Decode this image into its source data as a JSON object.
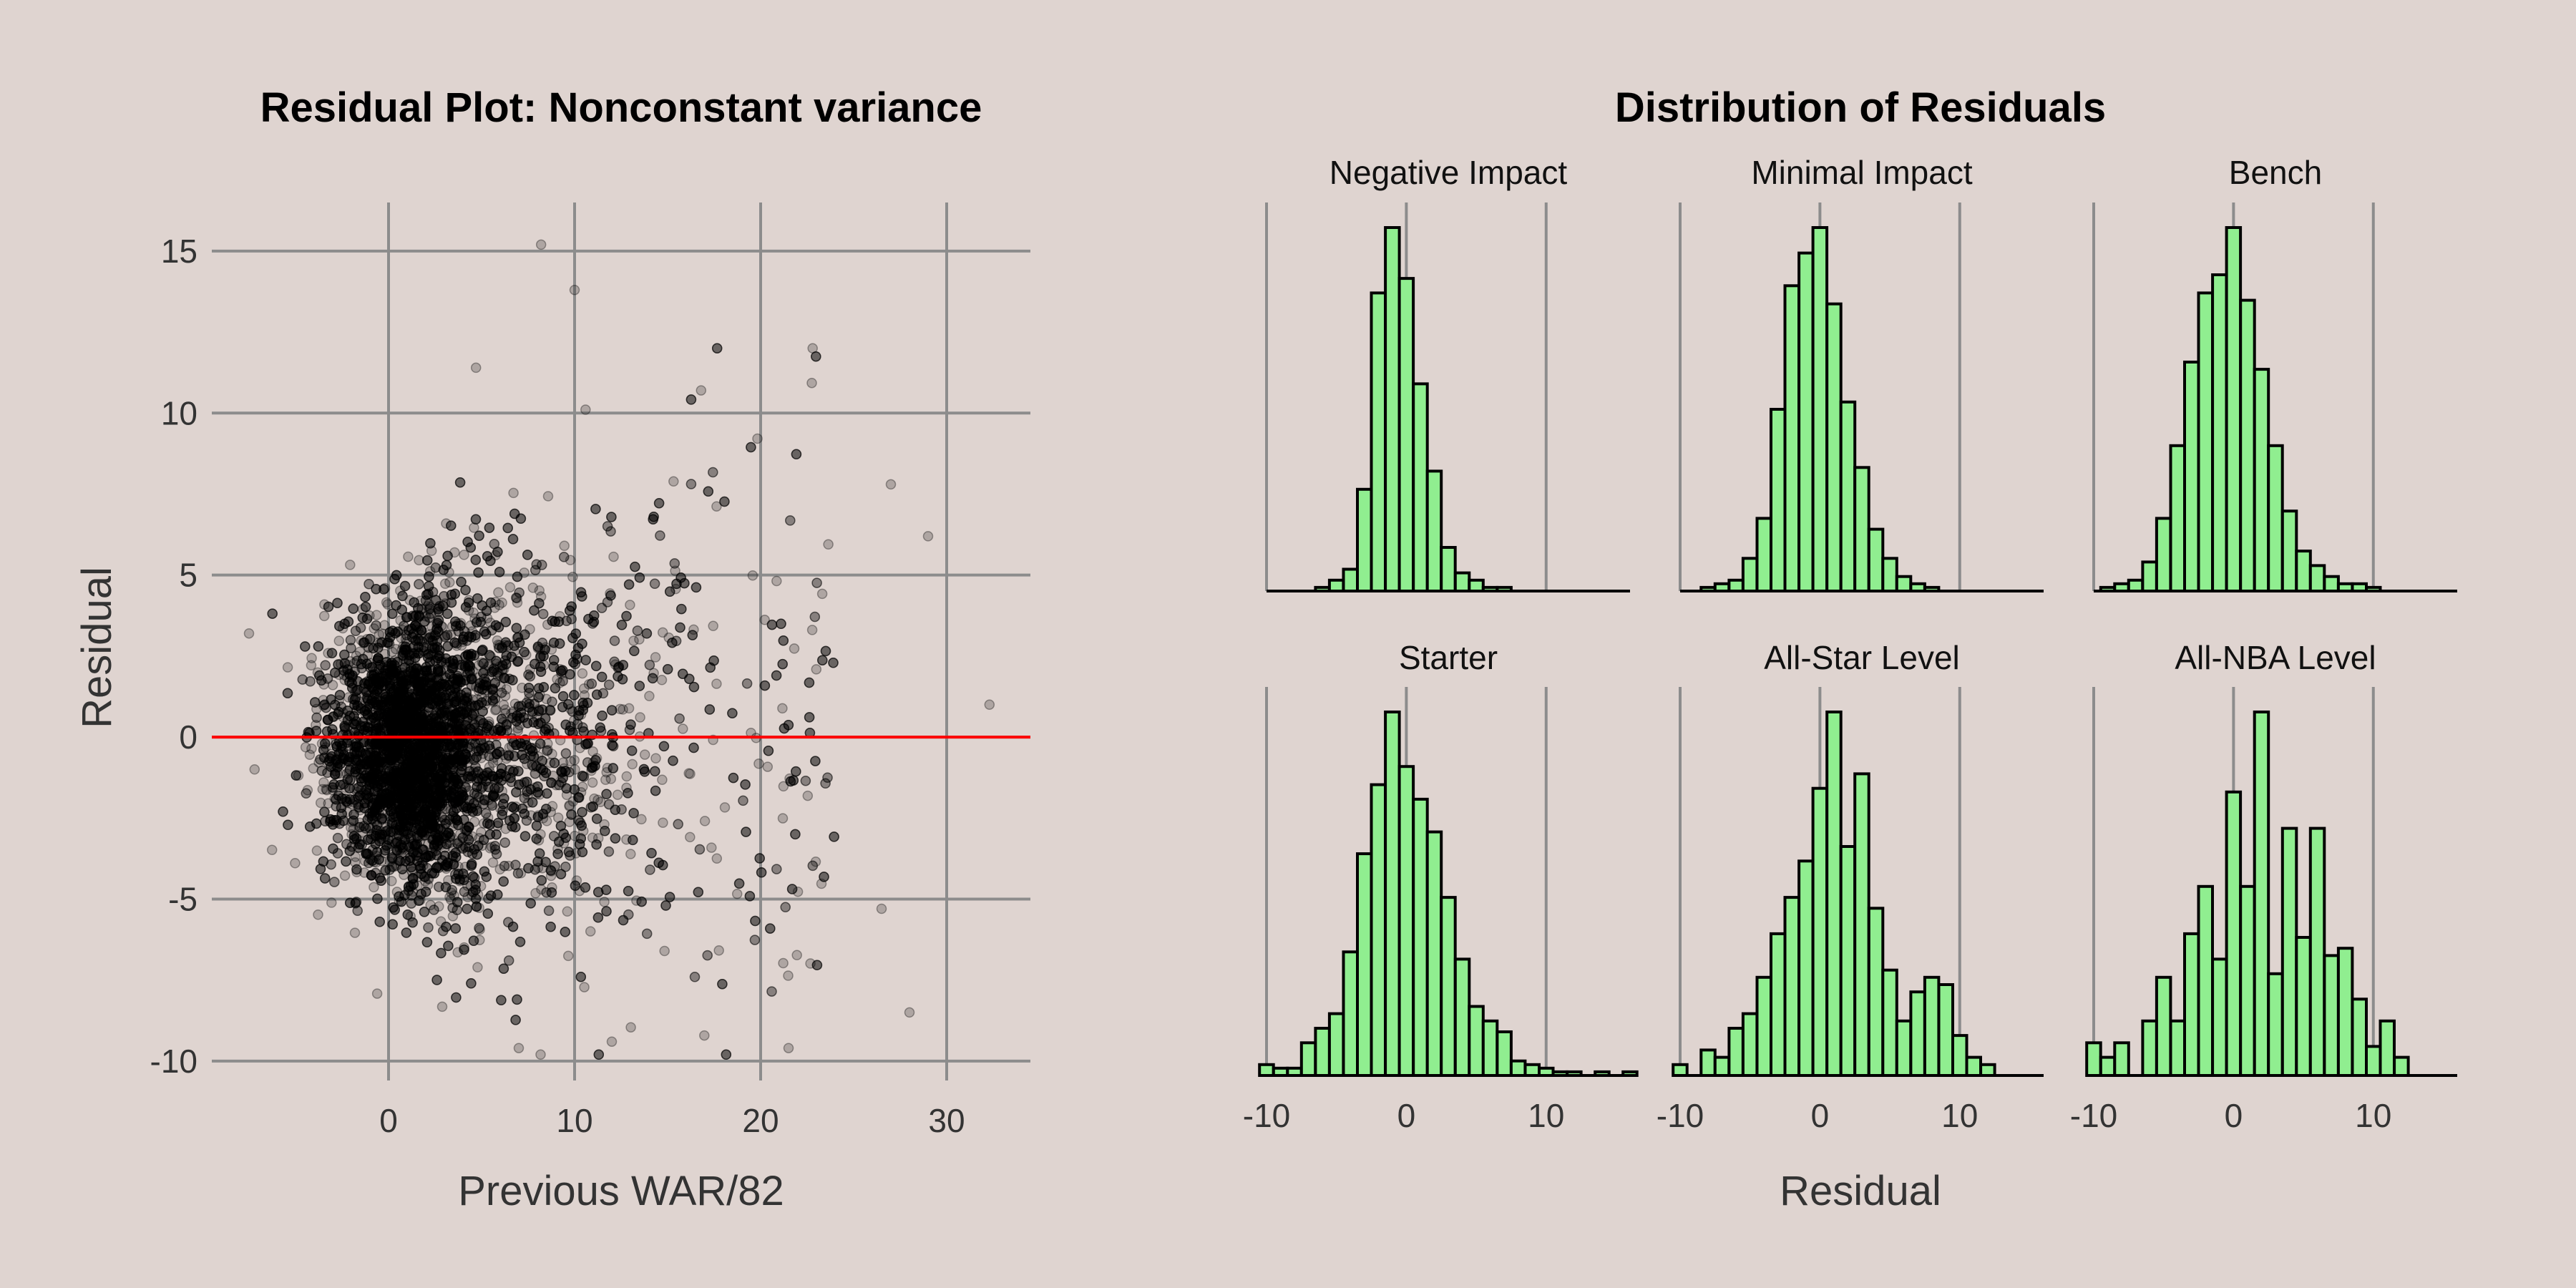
{
  "chart_data": [
    {
      "type": "scatter",
      "title": "Residual Plot: Nonconstant variance",
      "xlabel": "Previous WAR/82",
      "ylabel": "Residual",
      "xlim": [
        -9.5,
        34.5
      ],
      "ylim": [
        -10.6,
        16.5
      ],
      "xticks": [
        0,
        10,
        20,
        30
      ],
      "yticks": [
        -10,
        -5,
        0,
        5,
        10,
        15
      ],
      "reference_line": {
        "y": 0,
        "color": "#ff0000"
      },
      "point_color": "#000000",
      "point_alpha": 0.22,
      "approx_points": 7000,
      "notable_points": [
        {
          "x": 8.2,
          "y": 15.2
        },
        {
          "x": 10.0,
          "y": 13.8
        },
        {
          "x": 32.3,
          "y": 1.0
        },
        {
          "x": 28.0,
          "y": -8.5
        },
        {
          "x": 29.0,
          "y": 6.2
        },
        {
          "x": 27.0,
          "y": 7.8
        },
        {
          "x": -7.5,
          "y": 3.2
        },
        {
          "x": -7.2,
          "y": -1.0
        },
        {
          "x": 21.5,
          "y": -9.6
        },
        {
          "x": 12.0,
          "y": -9.4
        },
        {
          "x": 7.0,
          "y": -9.6
        },
        {
          "x": 4.7,
          "y": 11.4
        },
        {
          "x": 16.8,
          "y": 10.7
        },
        {
          "x": 26.5,
          "y": -5.3
        }
      ]
    },
    {
      "type": "bar",
      "title": "Distribution of Residuals",
      "xlabel": "Residual",
      "xlim": [
        -10,
        16
      ],
      "xticks": [
        -10,
        0,
        10
      ],
      "bin_width": 1,
      "bar_color": "#90ee90",
      "panels": [
        {
          "name": "Negative Impact",
          "bin_start": -6.5,
          "values": [
            1,
            3,
            6,
            28,
            82,
            100,
            86,
            57,
            33,
            12,
            5,
            3,
            1,
            1
          ]
        },
        {
          "name": "Minimal Impact",
          "bin_start": -8.5,
          "values": [
            1,
            2,
            3,
            9,
            20,
            50,
            84,
            93,
            100,
            79,
            52,
            34,
            17,
            9,
            4,
            2,
            1
          ]
        },
        {
          "name": "Bench",
          "bin_start": -9.5,
          "values": [
            1,
            2,
            3,
            8,
            20,
            40,
            63,
            82,
            87,
            100,
            80,
            61,
            40,
            22,
            11,
            7,
            4,
            2,
            2,
            1
          ]
        },
        {
          "name": "Starter",
          "bin_start": -10.5,
          "values": [
            3,
            2,
            2,
            9,
            13,
            17,
            34,
            61,
            80,
            100,
            85,
            76,
            67,
            49,
            32,
            19,
            15,
            12,
            4,
            3,
            2,
            1,
            1,
            0,
            1,
            0,
            1
          ]
        },
        {
          "name": "All-Star Level",
          "bin_start": -10.5,
          "values": [
            3,
            0,
            7,
            5,
            13,
            17,
            27,
            39,
            49,
            59,
            79,
            100,
            63,
            83,
            46,
            29,
            15,
            23,
            27,
            25,
            11,
            5,
            3
          ]
        },
        {
          "name": "All-NBA Level",
          "bin_start": -10.5,
          "values": [
            9,
            5,
            9,
            0,
            15,
            27,
            15,
            39,
            52,
            32,
            78,
            52,
            100,
            28,
            68,
            38,
            68,
            33,
            35,
            21,
            8,
            15,
            5
          ]
        }
      ]
    }
  ]
}
